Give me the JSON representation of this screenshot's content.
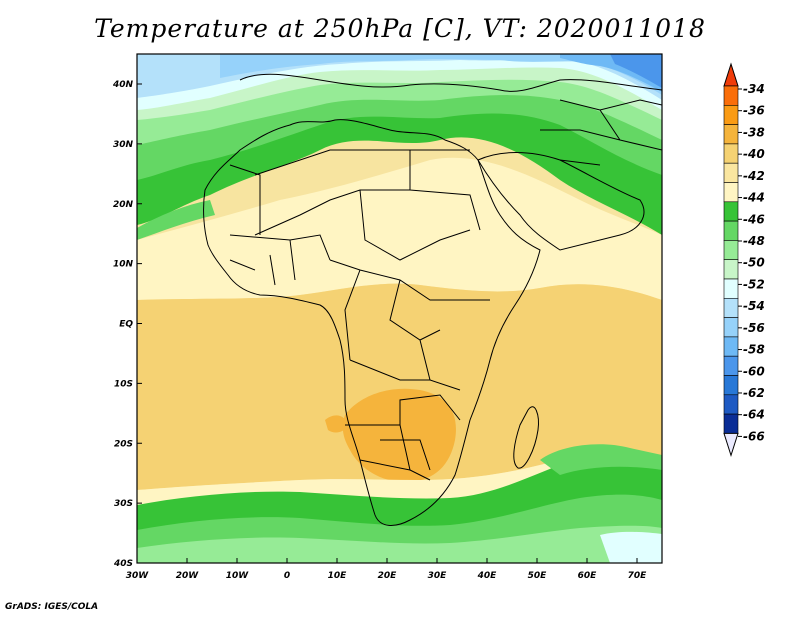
{
  "title": "Temperature at 250hPa [C], VT: 2020011018",
  "credit": "GrADS: IGES/COLA",
  "map": {
    "lon_labels": [
      "30W",
      "20W",
      "10W",
      "0",
      "10E",
      "20E",
      "30E",
      "40E",
      "50E",
      "60E",
      "70E"
    ],
    "lat_labels": [
      "40N",
      "30N",
      "20N",
      "10N",
      "EQ",
      "10S",
      "20S",
      "30S",
      "40S"
    ],
    "region": "Africa"
  },
  "legend": {
    "levels": [
      "-34",
      "-36",
      "-38",
      "-40",
      "-42",
      "-44",
      "-46",
      "-48",
      "-50",
      "-52",
      "-54",
      "-56",
      "-58",
      "-60",
      "-62",
      "-64",
      "-66"
    ],
    "colors": [
      "#f03c0a",
      "#fa6e0a",
      "#fa9b14",
      "#f5b43c",
      "#f5d273",
      "#fae6a0",
      "#fff5c3",
      "#37c337",
      "#64d764",
      "#96eb96",
      "#c8f5c8",
      "#e1ffff",
      "#b4e1fa",
      "#96d2fa",
      "#6eb9f5",
      "#4b96eb",
      "#2878d7",
      "#1e5ac3",
      "#0a2d96",
      "#ebebff"
    ]
  }
}
